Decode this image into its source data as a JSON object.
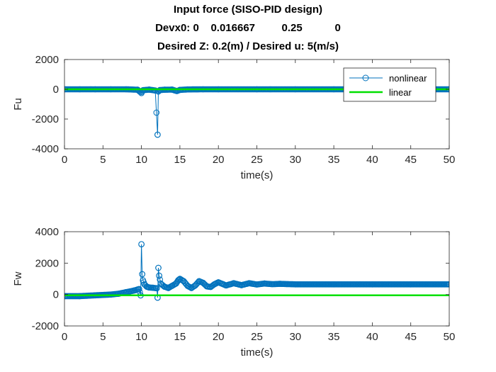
{
  "figure": {
    "title_lines": [
      "Input force (SISO-PID design)",
      "Devx0: 0    0.016667         0.25           0",
      "Desired Z: 0.2(m) / Desired u: 5(m/s)"
    ]
  },
  "colors": {
    "nonlinear": "#0072BD",
    "linear": "#00E000",
    "axes": "#262626",
    "grid": "#e6e6e6"
  },
  "chart_data": [
    {
      "type": "line",
      "xlabel": "time(s)",
      "ylabel": "Fu",
      "xlim": [
        0,
        50
      ],
      "ylim": [
        -4000,
        2000
      ],
      "xticks": [
        0,
        5,
        10,
        15,
        20,
        25,
        30,
        35,
        40,
        45,
        50
      ],
      "yticks": [
        -4000,
        -2000,
        0,
        2000
      ],
      "legend": {
        "placement": "top-right",
        "entries": [
          "nonlinear",
          "linear"
        ]
      },
      "series": [
        {
          "name": "nonlinear",
          "marker": "circle",
          "x": [
            0,
            2,
            4,
            6,
            8,
            9.5,
            10,
            10.2,
            11,
            11.8,
            12.1,
            12.2,
            12.4,
            13,
            14,
            14.6,
            15,
            16,
            18,
            20,
            25,
            30,
            35,
            40,
            45,
            50
          ],
          "y": [
            0,
            0,
            0,
            0,
            0,
            -30,
            -250,
            -60,
            -20,
            -80,
            -3050,
            -150,
            -50,
            -30,
            -20,
            -120,
            -40,
            -10,
            0,
            0,
            0,
            0,
            0,
            0,
            0,
            0
          ]
        },
        {
          "name": "linear",
          "x": [
            0,
            50
          ],
          "y": [
            0,
            0
          ]
        }
      ]
    },
    {
      "type": "line",
      "xlabel": "time(s)",
      "ylabel": "Fw",
      "xlim": [
        0,
        50
      ],
      "ylim": [
        -2000,
        4000
      ],
      "xticks": [
        0,
        5,
        10,
        15,
        20,
        25,
        30,
        35,
        40,
        45,
        50
      ],
      "yticks": [
        -2000,
        0,
        2000,
        4000
      ],
      "series": [
        {
          "name": "nonlinear",
          "marker": "circle",
          "x": [
            0,
            2,
            4,
            6,
            7,
            8,
            9,
            9.7,
            9.9,
            10,
            10.1,
            10.2,
            10.4,
            10.7,
            11,
            11.5,
            12,
            12.1,
            12.2,
            12.3,
            12.5,
            13,
            13.5,
            14,
            14.5,
            14.8,
            15,
            15.5,
            16,
            16.5,
            17,
            17.5,
            18,
            18.5,
            19,
            19.5,
            20,
            21,
            22,
            23,
            24,
            25,
            26,
            27,
            28,
            30,
            35,
            40,
            45,
            50
          ],
          "y": [
            -100,
            -100,
            -50,
            0,
            50,
            150,
            250,
            350,
            -50,
            3200,
            1300,
            900,
            650,
            500,
            450,
            430,
            400,
            -200,
            1700,
            1200,
            700,
            500,
            420,
            560,
            700,
            920,
            1000,
            850,
            550,
            420,
            580,
            850,
            750,
            520,
            480,
            660,
            780,
            580,
            720,
            600,
            720,
            640,
            700,
            660,
            680,
            650,
            650,
            650,
            650,
            650
          ]
        },
        {
          "name": "linear",
          "x": [
            0,
            50
          ],
          "y": [
            -50,
            -50
          ]
        }
      ]
    }
  ]
}
